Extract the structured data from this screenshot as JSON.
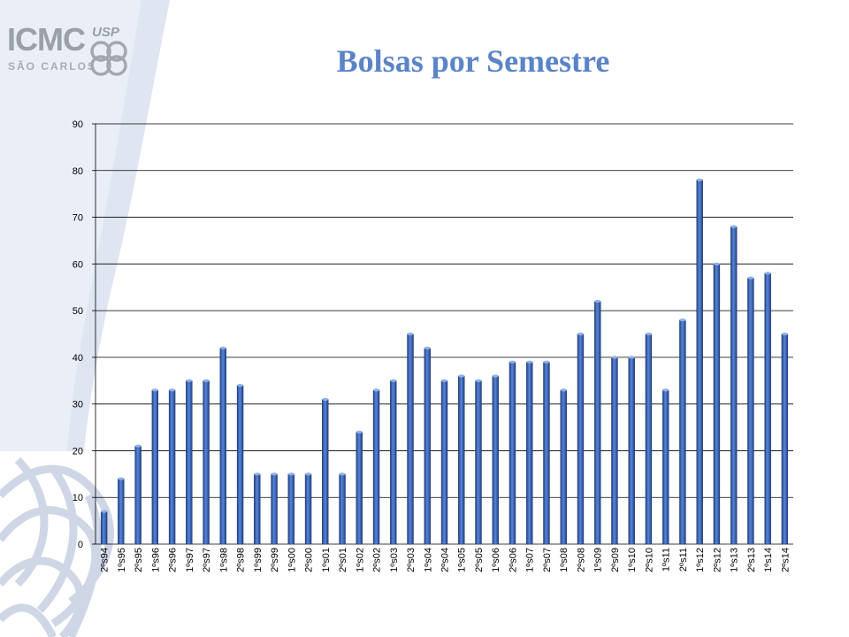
{
  "slide": {
    "title": "Bolsas por Semestre",
    "logo": {
      "main": "ICMC",
      "usp": "USP",
      "subtitle": "SÃO CARLOS"
    }
  },
  "colors": {
    "bar": "#2f5db8",
    "bar_light": "#5a86d6",
    "bar_dark": "#1e3f86",
    "title": "#5b84c8",
    "grid": "#000000"
  },
  "chart_data": {
    "type": "bar",
    "categories": [
      "2ºs94",
      "1ºs95",
      "2ºs95",
      "1ºs96",
      "2ºs96",
      "1ºs97",
      "2ºs97",
      "1ºs98",
      "2ºs98",
      "1ºs99",
      "2ºs99",
      "1ºs00",
      "2ºs00",
      "1ºs01",
      "2ºs01",
      "1ºs02",
      "2ºs02",
      "1ºs03",
      "2ºs03",
      "1ºs04",
      "2ºs04",
      "1ºs05",
      "2ºs05",
      "1ºs06",
      "2ºs06",
      "1ºs07",
      "2ºs07",
      "1ºs08",
      "2ºs08",
      "1ºs09",
      "2ºs09",
      "1ºs10",
      "2ºs10",
      "1ºs11",
      "2ºs11",
      "1ºs12",
      "2ºs12",
      "1ºs13",
      "2ºs13",
      "1ºs14",
      "2ºs14"
    ],
    "values": [
      7,
      14,
      21,
      33,
      33,
      35,
      35,
      42,
      34,
      15,
      15,
      15,
      15,
      31,
      15,
      24,
      33,
      35,
      45,
      42,
      35,
      36,
      35,
      36,
      39,
      39,
      39,
      33,
      45,
      52,
      40,
      40,
      45,
      33,
      48,
      78,
      60,
      68,
      57,
      58,
      45
    ],
    "yticks": [
      0,
      10,
      20,
      30,
      40,
      50,
      60,
      70,
      80,
      90
    ],
    "ylim": [
      0,
      90
    ],
    "grid": true,
    "legend": "none",
    "title": "",
    "xlabel": "",
    "ylabel": ""
  }
}
